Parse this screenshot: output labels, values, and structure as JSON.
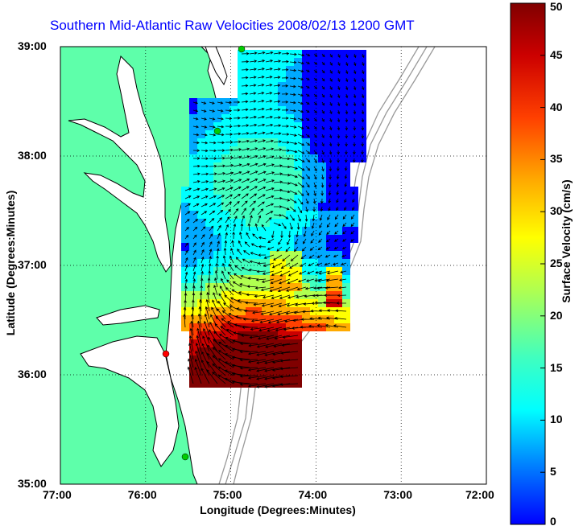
{
  "title": "Southern Mid-Atlantic Raw Velocities 2008/02/13 1200 GMT",
  "xlabel": "Longitude (Degrees:Minutes)",
  "ylabel": "Latitude (Degrees:Minutes)",
  "colorbar": {
    "label": "Surface Velocity (cm/s)",
    "ticks": [
      "50",
      "45",
      "40",
      "35",
      "30",
      "25",
      "20",
      "15",
      "10",
      "5",
      "0"
    ],
    "range": [
      0,
      50
    ],
    "colors": [
      "#0000ff",
      "#00aaff",
      "#00ffff",
      "#40ffbf",
      "#b0ff50",
      "#ffff00",
      "#ffaa00",
      "#ff4000",
      "#cc0000",
      "#800000"
    ]
  },
  "x_ticks": [
    "77:00",
    "76:00",
    "75:00",
    "74:00",
    "73:00",
    "72:00"
  ],
  "y_ticks": [
    "39:00",
    "38:00",
    "37:00",
    "36:00",
    "35:00"
  ],
  "colors": {
    "land": "#5effaa",
    "coast": "#000000",
    "title": "#0000ff",
    "bathymetry": "#999999",
    "grid": "#000000"
  },
  "markers": [
    {
      "color": "#00cc00"
    },
    {
      "color": "#00cc00"
    },
    {
      "color": "#ff0000"
    },
    {
      "color": "#00cc00"
    }
  ]
}
